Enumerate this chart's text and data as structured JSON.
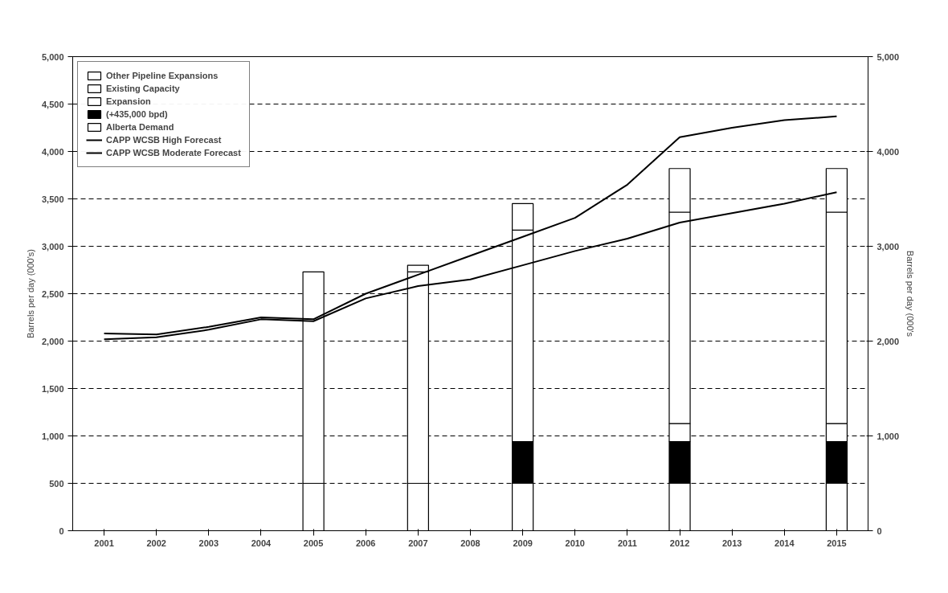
{
  "chart_data": {
    "type": "bar",
    "stacked": true,
    "ylabel": "Barrels per day (000's)",
    "y2label": "Barrels per day (000's",
    "categories": [
      "2001",
      "2002",
      "2003",
      "2004",
      "2005",
      "2006",
      "2007",
      "2008",
      "2009",
      "2010",
      "2011",
      "2012",
      "2013",
      "2014",
      "2015"
    ],
    "series": [
      {
        "name": "Alberta Demand",
        "color": "#ffffff",
        "values": [
          null,
          null,
          null,
          null,
          500,
          null,
          500,
          null,
          500,
          null,
          null,
          500,
          null,
          null,
          500
        ]
      },
      {
        "name": "(+435,000 bpd)",
        "color": "#000000",
        "values": [
          null,
          null,
          null,
          null,
          null,
          null,
          null,
          null,
          440,
          null,
          null,
          440,
          null,
          null,
          440
        ]
      },
      {
        "name": "Expansion",
        "color": "#ffffff",
        "values": [
          null,
          null,
          null,
          null,
          null,
          null,
          null,
          null,
          null,
          null,
          null,
          190,
          null,
          null,
          190
        ]
      },
      {
        "name": "Existing Capacity",
        "color": "#ffffff",
        "values": [
          null,
          null,
          null,
          null,
          2230,
          null,
          2230,
          null,
          2230,
          null,
          null,
          2230,
          null,
          null,
          2230
        ]
      },
      {
        "name": "Other Pipeline Expansions",
        "color": "#ffffff",
        "values": [
          null,
          null,
          null,
          null,
          null,
          null,
          70,
          null,
          280,
          null,
          null,
          460,
          null,
          null,
          460
        ]
      },
      {
        "name": "CAPP WCSB High Forecast",
        "type": "line",
        "color": "#000000",
        "values": [
          2080,
          2070,
          2150,
          2250,
          2230,
          2500,
          2700,
          2900,
          3100,
          3300,
          3650,
          4150,
          4250,
          4330,
          4370
        ]
      },
      {
        "name": "CAPP WCSB Moderate Forecast",
        "type": "line",
        "color": "#000000",
        "values": [
          2020,
          2040,
          2120,
          2230,
          2210,
          2450,
          2580,
          2650,
          2800,
          2950,
          3080,
          3250,
          3350,
          3450,
          3570
        ]
      }
    ],
    "ylim": [
      0,
      5000
    ],
    "yticks": [
      0,
      {
        "value": 500,
        "label": "500"
      },
      {
        "value": 1000,
        "label": "1,000"
      },
      {
        "value": 1500,
        "label": "1,500"
      },
      {
        "value": 2000,
        "label": "2,000"
      },
      {
        "value": 2500,
        "label": "2,500"
      },
      {
        "value": 3000,
        "label": "3,000"
      },
      {
        "value": 3500,
        "label": "3,500"
      },
      {
        "value": 4000,
        "label": "4,000"
      },
      {
        "value": 4500,
        "label": "4,500"
      },
      {
        "value": 5000,
        "label": "5,000"
      }
    ],
    "y2lim": [
      0,
      5000
    ],
    "y2ticks": [
      0,
      {
        "value": 1000,
        "label": "1,000"
      },
      {
        "value": 2000,
        "label": "2,000"
      },
      {
        "value": 3000,
        "label": "3,000"
      },
      {
        "value": 4000,
        "label": "4,000"
      },
      {
        "value": 5000,
        "label": "5,000"
      }
    ],
    "grid": "y",
    "legend": "top left"
  }
}
